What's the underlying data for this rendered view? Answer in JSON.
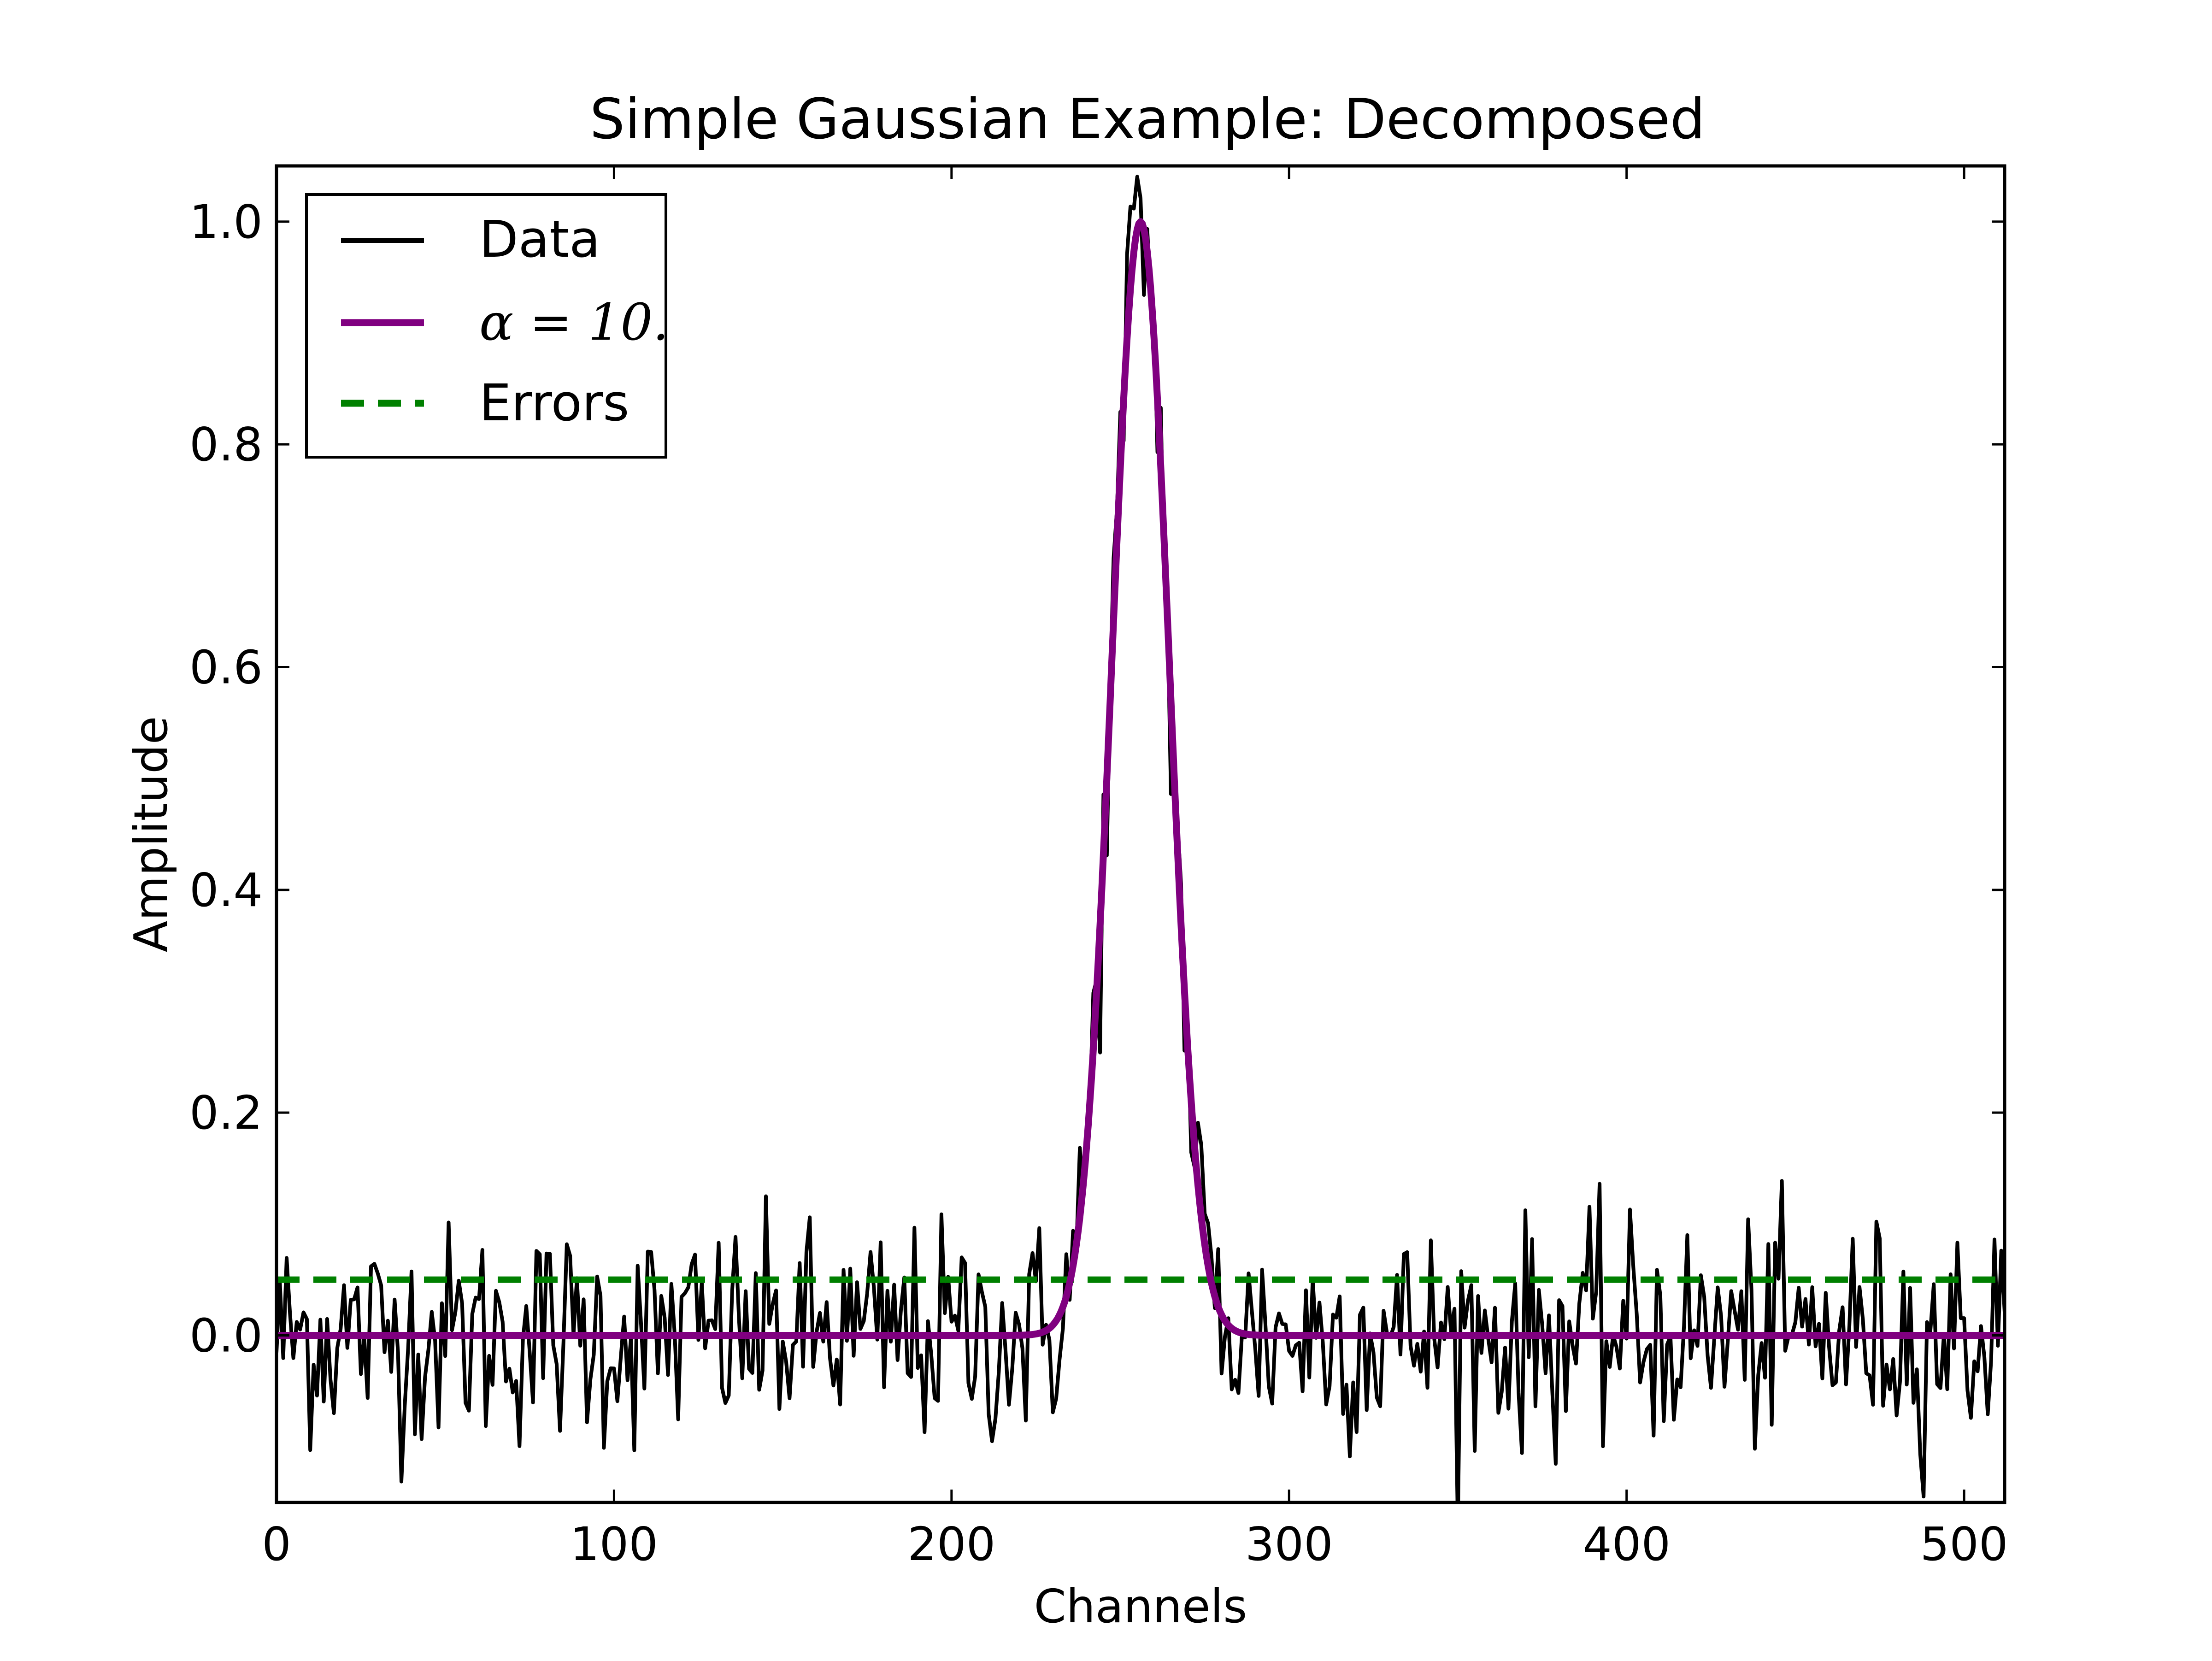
{
  "chart_data": {
    "type": "line",
    "title": "Simple Gaussian Example: Decomposed",
    "xlabel": "Channels",
    "ylabel": "Amplitude",
    "xlim": [
      0,
      512
    ],
    "ylim": [
      -0.15,
      1.05
    ],
    "x_ticks": [
      0,
      100,
      200,
      300,
      400,
      500
    ],
    "x_tick_labels": [
      "0",
      "100",
      "200",
      "300",
      "400",
      "500"
    ],
    "y_ticks": [
      0.0,
      0.2,
      0.4,
      0.6,
      0.8,
      1.0
    ],
    "y_tick_labels": [
      "0.0",
      "0.2",
      "0.4",
      "0.6",
      "0.8",
      "1.0"
    ],
    "grid": false,
    "legend_position": "top-left",
    "legend": [
      {
        "label": "Data",
        "color": "#000000",
        "style": "solid"
      },
      {
        "label": "α = 10.",
        "color": "#800080",
        "style": "solid"
      },
      {
        "label": "Errors",
        "color": "#008000",
        "style": "dashed"
      }
    ],
    "series": [
      {
        "name": "Data",
        "color": "#000000",
        "description": "noisy channel data, noise amplitude ~0.05",
        "peak_channel": 256,
        "peak_amplitude": 1.0,
        "fwhm_channels": 20
      },
      {
        "name": "α = 10.",
        "color": "#800080",
        "gaussian": {
          "amplitude": 1.0,
          "center": 256,
          "fwhm": 20
        },
        "x_range": [
          0,
          512
        ]
      },
      {
        "name": "Errors",
        "color": "#008000",
        "constant": 0.05,
        "x_range": [
          0,
          512
        ]
      }
    ]
  }
}
